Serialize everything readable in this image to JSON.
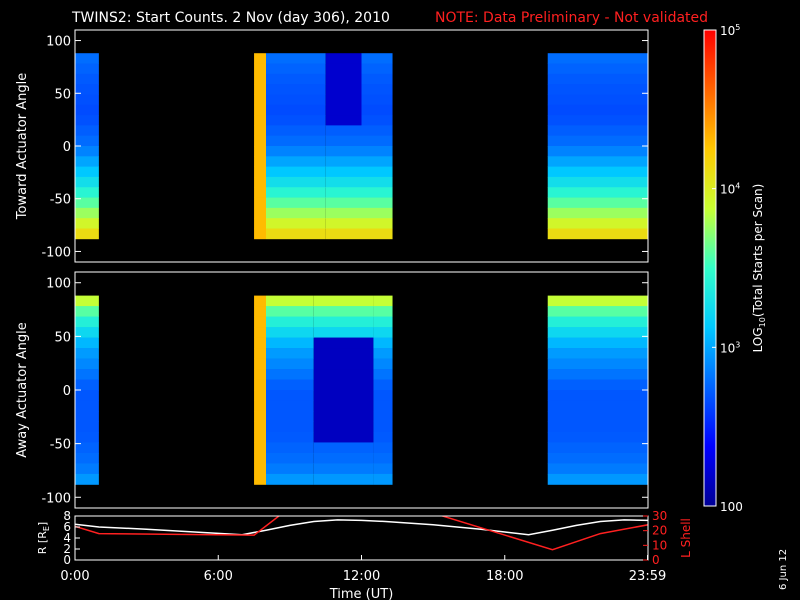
{
  "header": {
    "title": "TWINS2: Start Counts.  2 Nov (day 306), 2010",
    "note": "NOTE: Data Preliminary - Not validated"
  },
  "stamp": "6 Jun 12",
  "colorbar": {
    "label_main": "LOG",
    "label_sub": "10",
    "label_rest": "(Total Starts per Scan)",
    "ticks": [
      {
        "value": 100,
        "label": "100"
      },
      {
        "value": 1000,
        "label": "10",
        "exp": "3"
      },
      {
        "value": 10000,
        "label": "10",
        "exp": "4"
      },
      {
        "value": 100000,
        "label": "10",
        "exp": "5"
      }
    ],
    "range": [
      100,
      100000
    ],
    "colors": [
      "#000096",
      "#0000ff",
      "#0064ff",
      "#00c8ff",
      "#32ffc8",
      "#c8ff32",
      "#ffc800",
      "#ff6400",
      "#ff0000"
    ]
  },
  "chart_data": [
    {
      "type": "heatmap",
      "ylabel": "Toward Actuator Angle",
      "ylim": [
        -110,
        110
      ],
      "yticks": [
        100,
        50,
        0,
        -50,
        -100
      ],
      "xlim": [
        0,
        24
      ],
      "data_angle_range": [
        -88,
        88
      ],
      "coverage_hours": [
        [
          0.0,
          1.0
        ],
        [
          7.5,
          13.3
        ],
        [
          19.8,
          24.0
        ]
      ],
      "profile": [
        {
          "angle": 88,
          "log10": 2.8
        },
        {
          "angle": 60,
          "log10": 2.7
        },
        {
          "angle": 30,
          "log10": 2.65
        },
        {
          "angle": 0,
          "log10": 2.8
        },
        {
          "angle": -30,
          "log10": 3.2
        },
        {
          "angle": -60,
          "log10": 3.7
        },
        {
          "angle": -88,
          "log10": 4.2
        }
      ],
      "features": [
        {
          "hour_range": [
            10.5,
            12.0
          ],
          "angle_range": [
            20,
            88
          ],
          "log10": 2.2
        },
        {
          "hour_range": [
            7.5,
            8.0
          ],
          "angle_range": [
            -88,
            88
          ],
          "log10": 4.3
        }
      ]
    },
    {
      "type": "heatmap",
      "ylabel": "Away Actuator Angle",
      "ylim": [
        -110,
        110
      ],
      "yticks": [
        100,
        50,
        0,
        -50,
        -100
      ],
      "xlim": [
        0,
        24
      ],
      "data_angle_range": [
        -88,
        88
      ],
      "coverage_hours": [
        [
          0.0,
          1.0
        ],
        [
          7.5,
          13.3
        ],
        [
          19.8,
          24.0
        ]
      ],
      "profile": [
        {
          "angle": 88,
          "log10": 4.0
        },
        {
          "angle": 70,
          "log10": 3.5
        },
        {
          "angle": 40,
          "log10": 3.0
        },
        {
          "angle": 0,
          "log10": 2.7
        },
        {
          "angle": -40,
          "log10": 2.7
        },
        {
          "angle": -70,
          "log10": 2.8
        },
        {
          "angle": -88,
          "log10": 3.0
        }
      ],
      "features": [
        {
          "hour_range": [
            10.0,
            12.5
          ],
          "angle_range": [
            -50,
            50
          ],
          "log10": 2.15
        },
        {
          "hour_range": [
            7.5,
            8.0
          ],
          "angle_range": [
            -88,
            88
          ],
          "log10": 4.3
        }
      ]
    },
    {
      "type": "line",
      "ylabel": "R [R",
      "ylabel_sub": "E",
      "ylabel_end": "]",
      "y2label": "L Shell",
      "ylim": [
        0,
        8
      ],
      "yticks": [
        0,
        2,
        4,
        6,
        8
      ],
      "y2lim": [
        0,
        30
      ],
      "y2ticks": [
        0,
        10,
        20,
        30
      ],
      "xlabel": "Time (UT)",
      "xlim": [
        0,
        24
      ],
      "xticks": [
        {
          "value": 0,
          "label": "0:00"
        },
        {
          "value": 6,
          "label": "6:00"
        },
        {
          "value": 12,
          "label": "12:00"
        },
        {
          "value": 18,
          "label": "18:00"
        },
        {
          "value": 23.98,
          "label": "23:59"
        }
      ],
      "series": [
        {
          "color": "#ffffff",
          "axis": "left",
          "x": [
            0,
            1,
            3,
            5,
            7,
            8,
            9,
            10,
            11,
            12,
            13,
            14,
            15,
            16,
            17,
            18,
            19,
            20,
            21,
            22,
            23,
            24
          ],
          "y": [
            6.5,
            6.0,
            5.6,
            5.1,
            4.6,
            5.4,
            6.3,
            7.0,
            7.3,
            7.2,
            7.0,
            6.7,
            6.4,
            6.0,
            5.6,
            5.1,
            4.6,
            5.4,
            6.3,
            7.0,
            7.3,
            7.2
          ]
        },
        {
          "color": "#ff2020",
          "axis": "right",
          "x": [
            0,
            1,
            7.5,
            8.7,
            null,
            15,
            20,
            22,
            24
          ],
          "y": [
            23,
            18,
            17,
            32,
            null,
            32,
            7,
            18,
            24
          ]
        }
      ]
    }
  ]
}
